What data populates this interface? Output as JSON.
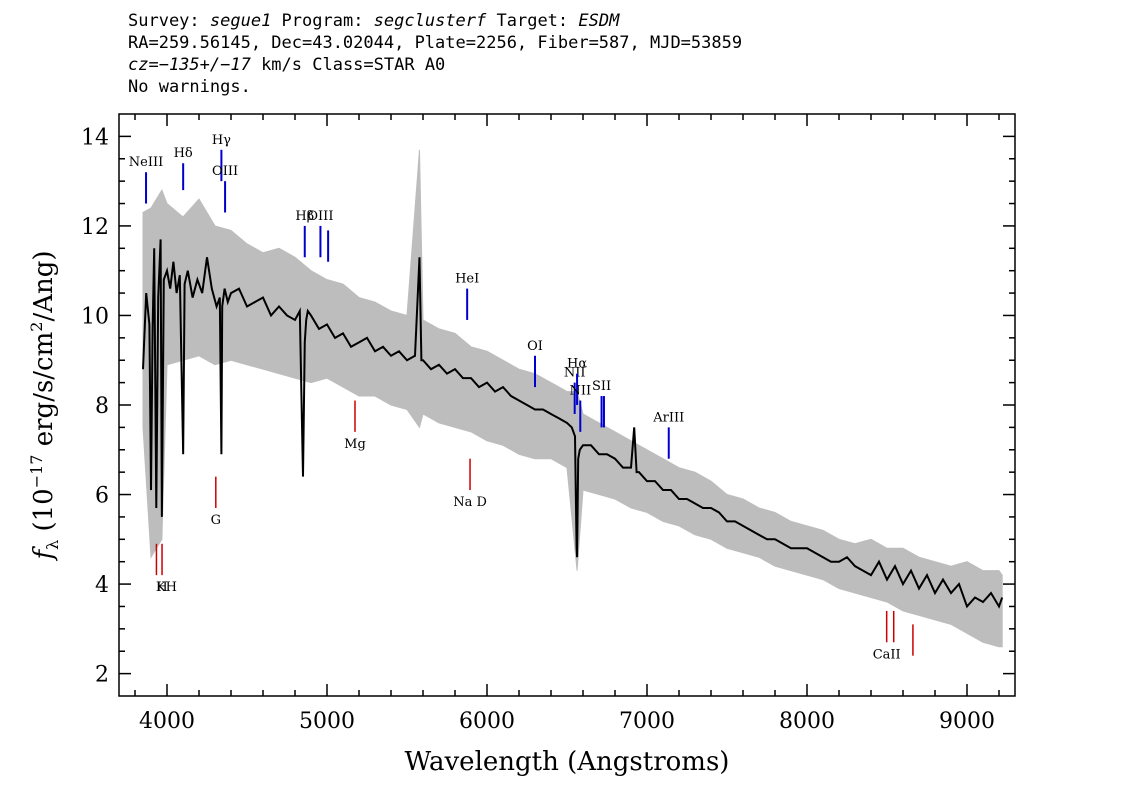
{
  "header": {
    "line1": {
      "survey_label": "Survey: ",
      "survey": "segue1",
      "program_label": " Program: ",
      "program": "segclusterf",
      "target_label": " Target: ",
      "target": "ESDM"
    },
    "line2": "RA=259.56145, Dec=43.02044, Plate=2256, Fiber=587, MJD=53859",
    "line3": {
      "cz": "cz=−135+/−17",
      "rest": " km/s Class=STAR A0"
    },
    "line4": "No warnings."
  },
  "colors": {
    "flux": "#000000",
    "error_band": "#bdbdbd",
    "emission_line": "#0000cc",
    "absorption_line": "#cc0000"
  },
  "chart_data": {
    "type": "line",
    "xlabel": "Wavelength (Angstroms)",
    "ylabel_html": "f_λ (10^-17 erg/s/cm^2/Ang)",
    "xlim": [
      3700,
      9300
    ],
    "ylim": [
      1.5,
      14.5
    ],
    "x_ticks": [
      4000,
      5000,
      6000,
      7000,
      8000,
      9000
    ],
    "y_ticks": [
      2,
      4,
      6,
      8,
      10,
      12,
      14
    ],
    "series": [
      {
        "style": "flux",
        "x": [
          3850,
          3870,
          3890,
          3900,
          3910,
          3920,
          3933,
          3945,
          3960,
          3968,
          3980,
          4000,
          4020,
          4040,
          4060,
          4080,
          4101,
          4110,
          4130,
          4160,
          4190,
          4220,
          4250,
          4280,
          4310,
          4330,
          4340,
          4345,
          4360,
          4380,
          4400,
          4450,
          4500,
          4550,
          4600,
          4650,
          4700,
          4750,
          4800,
          4830,
          4850,
          4861,
          4870,
          4880,
          4900,
          4950,
          5000,
          5050,
          5100,
          5150,
          5200,
          5250,
          5300,
          5350,
          5400,
          5450,
          5500,
          5550,
          5578,
          5590,
          5600,
          5650,
          5700,
          5750,
          5800,
          5850,
          5900,
          5950,
          6000,
          6050,
          6100,
          6150,
          6200,
          6250,
          6300,
          6350,
          6400,
          6450,
          6500,
          6530,
          6550,
          6560,
          6563,
          6570,
          6580,
          6600,
          6650,
          6700,
          6750,
          6800,
          6850,
          6900,
          6920,
          6935,
          6950,
          7000,
          7050,
          7100,
          7150,
          7200,
          7250,
          7300,
          7350,
          7400,
          7450,
          7500,
          7550,
          7600,
          7650,
          7700,
          7750,
          7800,
          7850,
          7900,
          7950,
          8000,
          8050,
          8100,
          8150,
          8200,
          8250,
          8300,
          8350,
          8400,
          8450,
          8500,
          8550,
          8600,
          8650,
          8700,
          8750,
          8800,
          8850,
          8900,
          8950,
          9000,
          9050,
          9100,
          9150,
          9200,
          9220
        ],
        "y": [
          8.8,
          10.5,
          9.8,
          6.1,
          9.7,
          11.5,
          5.7,
          10.4,
          11.7,
          5.5,
          10.8,
          11.0,
          10.6,
          11.2,
          10.5,
          10.9,
          6.9,
          10.7,
          11.0,
          10.4,
          10.8,
          10.5,
          11.3,
          10.6,
          10.2,
          10.4,
          6.9,
          10.2,
          10.6,
          10.3,
          10.5,
          10.6,
          10.2,
          10.3,
          10.4,
          10.0,
          10.2,
          10.0,
          9.9,
          10.1,
          6.4,
          9.4,
          9.9,
          10.1,
          10.0,
          9.7,
          9.8,
          9.5,
          9.6,
          9.3,
          9.4,
          9.5,
          9.2,
          9.3,
          9.1,
          9.2,
          9.0,
          9.1,
          11.3,
          9.0,
          9.0,
          8.8,
          8.9,
          8.7,
          8.8,
          8.6,
          8.6,
          8.4,
          8.5,
          8.3,
          8.4,
          8.2,
          8.1,
          8.0,
          7.9,
          7.9,
          7.8,
          7.7,
          7.6,
          7.5,
          7.3,
          4.8,
          4.6,
          6.8,
          7.0,
          7.1,
          7.1,
          6.9,
          6.9,
          6.8,
          6.6,
          6.6,
          7.5,
          6.5,
          6.5,
          6.3,
          6.3,
          6.1,
          6.1,
          5.9,
          5.9,
          5.8,
          5.7,
          5.7,
          5.6,
          5.4,
          5.4,
          5.3,
          5.2,
          5.1,
          5.0,
          5.0,
          4.9,
          4.8,
          4.8,
          4.8,
          4.7,
          4.6,
          4.5,
          4.5,
          4.6,
          4.4,
          4.3,
          4.2,
          4.5,
          4.1,
          4.4,
          4.0,
          4.3,
          3.9,
          4.2,
          3.8,
          4.1,
          3.8,
          4.0,
          3.5,
          3.7,
          3.6,
          3.8,
          3.5,
          3.7
        ]
      },
      {
        "style": "error_upper",
        "x": [
          3850,
          3900,
          3968,
          4000,
          4100,
          4200,
          4300,
          4400,
          4500,
          4600,
          4700,
          4800,
          4900,
          5000,
          5100,
          5200,
          5300,
          5400,
          5500,
          5578,
          5600,
          5700,
          5800,
          5900,
          6000,
          6100,
          6200,
          6300,
          6400,
          6500,
          6563,
          6600,
          6700,
          6800,
          6900,
          7000,
          7100,
          7200,
          7300,
          7400,
          7500,
          7600,
          7700,
          7800,
          7900,
          8000,
          8100,
          8200,
          8300,
          8400,
          8500,
          8600,
          8700,
          8800,
          8900,
          9000,
          9100,
          9200,
          9220
        ],
        "y": [
          12.3,
          12.4,
          12.8,
          12.5,
          12.2,
          12.6,
          12.0,
          11.9,
          11.6,
          11.4,
          11.5,
          11.3,
          11.0,
          10.8,
          10.7,
          10.4,
          10.3,
          10.1,
          10.0,
          13.7,
          9.9,
          9.7,
          9.6,
          9.3,
          9.2,
          9.0,
          8.8,
          8.7,
          8.5,
          8.3,
          8.3,
          7.8,
          7.6,
          7.4,
          7.2,
          7.0,
          6.8,
          6.6,
          6.5,
          6.3,
          6.0,
          5.9,
          5.7,
          5.6,
          5.4,
          5.3,
          5.2,
          5.0,
          4.9,
          5.0,
          4.8,
          4.8,
          4.6,
          4.5,
          4.4,
          4.5,
          4.3,
          4.3,
          4.2
        ]
      },
      {
        "style": "error_lower",
        "x": [
          3850,
          3900,
          3968,
          4000,
          4100,
          4200,
          4300,
          4400,
          4500,
          4600,
          4700,
          4800,
          4900,
          5000,
          5100,
          5200,
          5300,
          5400,
          5500,
          5578,
          5600,
          5700,
          5800,
          5900,
          6000,
          6100,
          6200,
          6300,
          6400,
          6500,
          6563,
          6600,
          6700,
          6800,
          6900,
          7000,
          7100,
          7200,
          7300,
          7400,
          7500,
          7600,
          7700,
          7800,
          7900,
          8000,
          8100,
          8200,
          8300,
          8400,
          8500,
          8600,
          8700,
          8800,
          8900,
          9000,
          9100,
          9200,
          9220
        ],
        "y": [
          7.5,
          4.6,
          5.0,
          8.9,
          9.0,
          9.1,
          8.9,
          9.0,
          8.9,
          8.8,
          8.7,
          8.6,
          8.5,
          8.6,
          8.4,
          8.2,
          8.2,
          8.0,
          7.9,
          7.5,
          7.8,
          7.6,
          7.5,
          7.4,
          7.2,
          7.1,
          6.9,
          6.8,
          6.8,
          6.6,
          4.3,
          6.1,
          6.0,
          5.9,
          5.7,
          5.6,
          5.4,
          5.3,
          5.1,
          5.0,
          4.8,
          4.7,
          4.6,
          4.4,
          4.3,
          4.2,
          4.1,
          3.9,
          3.8,
          3.7,
          3.6,
          3.4,
          3.3,
          3.2,
          3.1,
          2.9,
          2.7,
          2.6,
          2.6
        ]
      }
    ],
    "emission_lines": [
      {
        "label": "NeIII",
        "x": 3869,
        "y0": 12.5,
        "y1": 13.2
      },
      {
        "label": "Hδ",
        "x": 4101,
        "y0": 12.8,
        "y1": 13.4
      },
      {
        "label": "Hγ",
        "x": 4340,
        "y0": 13.0,
        "y1": 13.7
      },
      {
        "label": "OIII",
        "x": 4363,
        "y0": 12.3,
        "y1": 13.0
      },
      {
        "label": "Hβ",
        "x": 4861,
        "y0": 11.3,
        "y1": 12.0
      },
      {
        "label": "OIII",
        "x": 4959,
        "y0": 11.3,
        "y1": 12.0
      },
      {
        "label": "",
        "x": 5007,
        "y0": 11.2,
        "y1": 11.9
      },
      {
        "label": "HeI",
        "x": 5876,
        "y0": 9.9,
        "y1": 10.6
      },
      {
        "label": "OI",
        "x": 6300,
        "y0": 8.4,
        "y1": 9.1
      },
      {
        "label": "NII",
        "x": 6548,
        "y0": 7.8,
        "y1": 8.5
      },
      {
        "label": "Hα",
        "x": 6563,
        "y0": 8.0,
        "y1": 8.7
      },
      {
        "label": "NII",
        "x": 6583,
        "y0": 7.4,
        "y1": 8.1
      },
      {
        "label": "SII",
        "x": 6716,
        "y0": 7.5,
        "y1": 8.2
      },
      {
        "label": "",
        "x": 6731,
        "y0": 7.5,
        "y1": 8.2
      },
      {
        "label": "ArIII",
        "x": 7136,
        "y0": 6.8,
        "y1": 7.5
      }
    ],
    "absorption_lines": [
      {
        "label": "K",
        "x": 3934,
        "y0": 4.2,
        "y1": 4.9
      },
      {
        "label": "H",
        "x": 3969,
        "y0": 4.2,
        "y1": 4.9
      },
      {
        "label": "G",
        "x": 4305,
        "y0": 5.7,
        "y1": 6.4
      },
      {
        "label": "Mg",
        "x": 5175,
        "y0": 7.4,
        "y1": 8.1
      },
      {
        "label": "Na D",
        "x": 5894,
        "y0": 6.1,
        "y1": 6.8
      },
      {
        "label": "CaII",
        "x": 8498,
        "y0": 2.7,
        "y1": 3.4
      },
      {
        "label": "",
        "x": 8542,
        "y0": 2.7,
        "y1": 3.4
      },
      {
        "label": "",
        "x": 8662,
        "y0": 2.4,
        "y1": 3.1
      }
    ]
  }
}
